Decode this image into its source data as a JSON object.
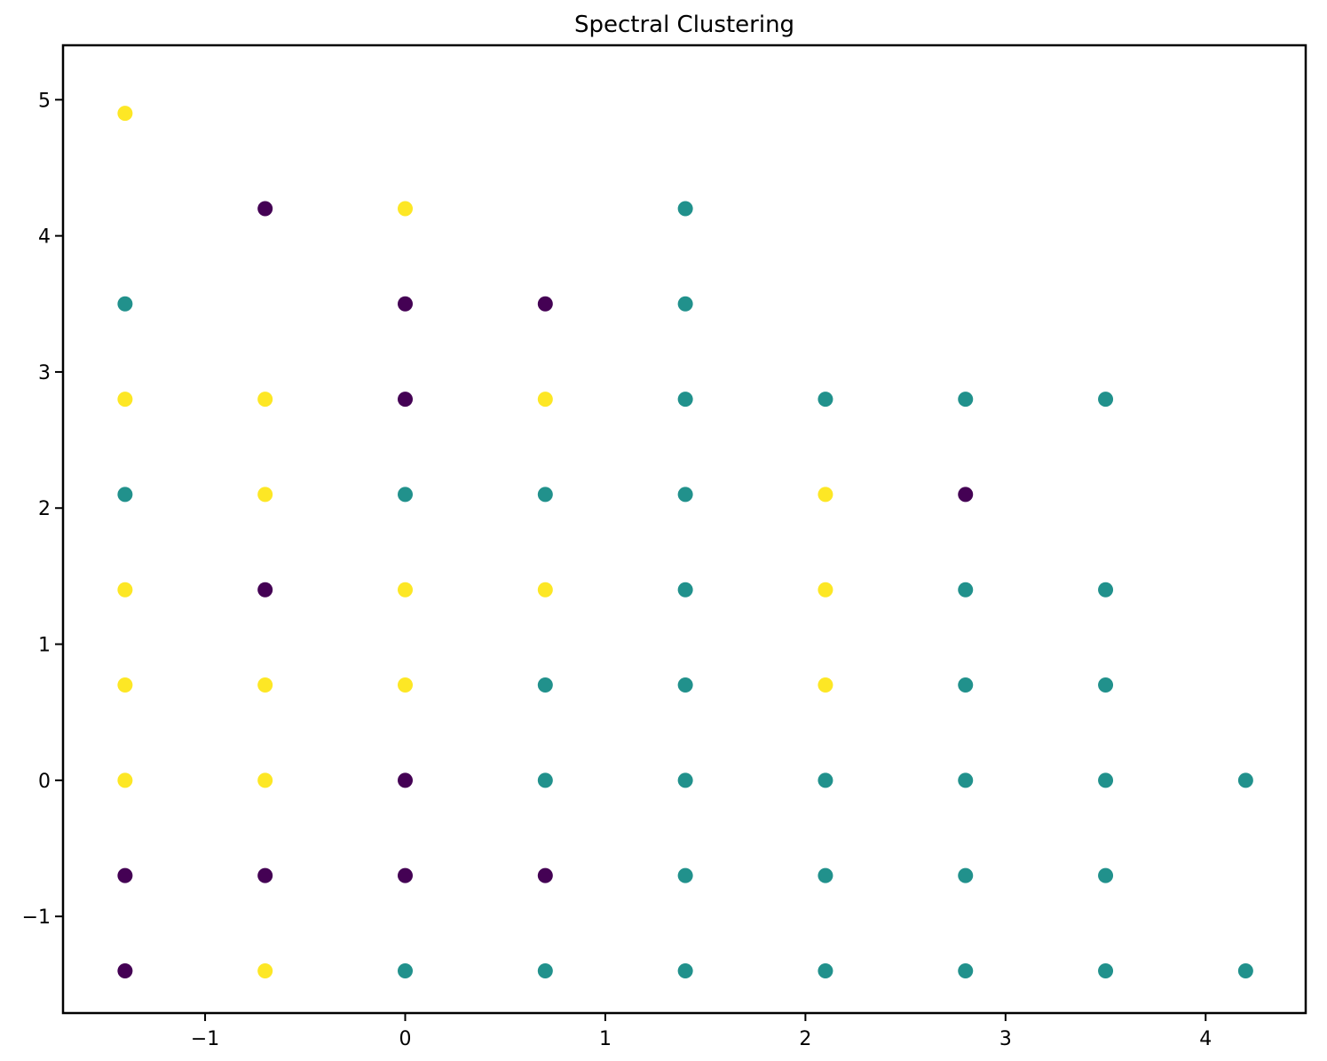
{
  "chart_data": {
    "type": "scatter",
    "title": "Spectral Clustering",
    "xlabel": "",
    "ylabel": "",
    "xlim": [
      -1.71,
      4.5
    ],
    "ylim": [
      -1.71,
      5.4
    ],
    "grid": false,
    "x_ticks": [
      -1,
      0,
      1,
      2,
      3,
      4
    ],
    "y_ticks": [
      -1,
      0,
      1,
      2,
      3,
      4,
      5
    ],
    "x_tick_labels": [
      "−1",
      "0",
      "1",
      "2",
      "3",
      "4"
    ],
    "y_tick_labels": [
      "−1",
      "0",
      "1",
      "2",
      "3",
      "4",
      "5"
    ],
    "cluster_colors": {
      "0": "#440154",
      "1": "#21918c",
      "2": "#fde725"
    },
    "points": [
      {
        "x": -1.4,
        "y": 4.9,
        "cluster": 2
      },
      {
        "x": -0.7,
        "y": 4.2,
        "cluster": 0
      },
      {
        "x": 0.0,
        "y": 4.2,
        "cluster": 2
      },
      {
        "x": 1.4,
        "y": 4.2,
        "cluster": 1
      },
      {
        "x": -1.4,
        "y": 3.5,
        "cluster": 1
      },
      {
        "x": 0.0,
        "y": 3.5,
        "cluster": 0
      },
      {
        "x": 0.7,
        "y": 3.5,
        "cluster": 0
      },
      {
        "x": 1.4,
        "y": 3.5,
        "cluster": 1
      },
      {
        "x": -1.4,
        "y": 2.8,
        "cluster": 2
      },
      {
        "x": -0.7,
        "y": 2.8,
        "cluster": 2
      },
      {
        "x": 0.0,
        "y": 2.8,
        "cluster": 0
      },
      {
        "x": 0.7,
        "y": 2.8,
        "cluster": 2
      },
      {
        "x": 1.4,
        "y": 2.8,
        "cluster": 1
      },
      {
        "x": 2.1,
        "y": 2.8,
        "cluster": 1
      },
      {
        "x": 2.8,
        "y": 2.8,
        "cluster": 1
      },
      {
        "x": 3.5,
        "y": 2.8,
        "cluster": 1
      },
      {
        "x": -1.4,
        "y": 2.1,
        "cluster": 1
      },
      {
        "x": -0.7,
        "y": 2.1,
        "cluster": 2
      },
      {
        "x": 0.0,
        "y": 2.1,
        "cluster": 1
      },
      {
        "x": 0.7,
        "y": 2.1,
        "cluster": 1
      },
      {
        "x": 1.4,
        "y": 2.1,
        "cluster": 1
      },
      {
        "x": 2.1,
        "y": 2.1,
        "cluster": 2
      },
      {
        "x": 2.8,
        "y": 2.1,
        "cluster": 0
      },
      {
        "x": -1.4,
        "y": 1.4,
        "cluster": 2
      },
      {
        "x": -0.7,
        "y": 1.4,
        "cluster": 0
      },
      {
        "x": 0.0,
        "y": 1.4,
        "cluster": 2
      },
      {
        "x": 0.7,
        "y": 1.4,
        "cluster": 2
      },
      {
        "x": 1.4,
        "y": 1.4,
        "cluster": 1
      },
      {
        "x": 2.1,
        "y": 1.4,
        "cluster": 2
      },
      {
        "x": 2.8,
        "y": 1.4,
        "cluster": 1
      },
      {
        "x": 3.5,
        "y": 1.4,
        "cluster": 1
      },
      {
        "x": -1.4,
        "y": 0.7,
        "cluster": 2
      },
      {
        "x": -0.7,
        "y": 0.7,
        "cluster": 2
      },
      {
        "x": 0.0,
        "y": 0.7,
        "cluster": 2
      },
      {
        "x": 0.7,
        "y": 0.7,
        "cluster": 1
      },
      {
        "x": 1.4,
        "y": 0.7,
        "cluster": 1
      },
      {
        "x": 2.1,
        "y": 0.7,
        "cluster": 2
      },
      {
        "x": 2.8,
        "y": 0.7,
        "cluster": 1
      },
      {
        "x": 3.5,
        "y": 0.7,
        "cluster": 1
      },
      {
        "x": -1.4,
        "y": 0.0,
        "cluster": 2
      },
      {
        "x": -0.7,
        "y": 0.0,
        "cluster": 2
      },
      {
        "x": 0.0,
        "y": 0.0,
        "cluster": 0
      },
      {
        "x": 0.7,
        "y": 0.0,
        "cluster": 1
      },
      {
        "x": 1.4,
        "y": 0.0,
        "cluster": 1
      },
      {
        "x": 2.1,
        "y": 0.0,
        "cluster": 1
      },
      {
        "x": 2.8,
        "y": 0.0,
        "cluster": 1
      },
      {
        "x": 3.5,
        "y": 0.0,
        "cluster": 1
      },
      {
        "x": 4.2,
        "y": 0.0,
        "cluster": 1
      },
      {
        "x": -1.4,
        "y": -0.7,
        "cluster": 0
      },
      {
        "x": -0.7,
        "y": -0.7,
        "cluster": 0
      },
      {
        "x": 0.0,
        "y": -0.7,
        "cluster": 0
      },
      {
        "x": 0.7,
        "y": -0.7,
        "cluster": 0
      },
      {
        "x": 1.4,
        "y": -0.7,
        "cluster": 1
      },
      {
        "x": 2.1,
        "y": -0.7,
        "cluster": 1
      },
      {
        "x": 2.8,
        "y": -0.7,
        "cluster": 1
      },
      {
        "x": 3.5,
        "y": -0.7,
        "cluster": 1
      },
      {
        "x": -1.4,
        "y": -1.4,
        "cluster": 0
      },
      {
        "x": -0.7,
        "y": -1.4,
        "cluster": 2
      },
      {
        "x": 0.0,
        "y": -1.4,
        "cluster": 1
      },
      {
        "x": 0.7,
        "y": -1.4,
        "cluster": 1
      },
      {
        "x": 1.4,
        "y": -1.4,
        "cluster": 1
      },
      {
        "x": 2.1,
        "y": -1.4,
        "cluster": 1
      },
      {
        "x": 2.8,
        "y": -1.4,
        "cluster": 1
      },
      {
        "x": 3.5,
        "y": -1.4,
        "cluster": 1
      },
      {
        "x": 4.2,
        "y": -1.4,
        "cluster": 1
      }
    ]
  }
}
